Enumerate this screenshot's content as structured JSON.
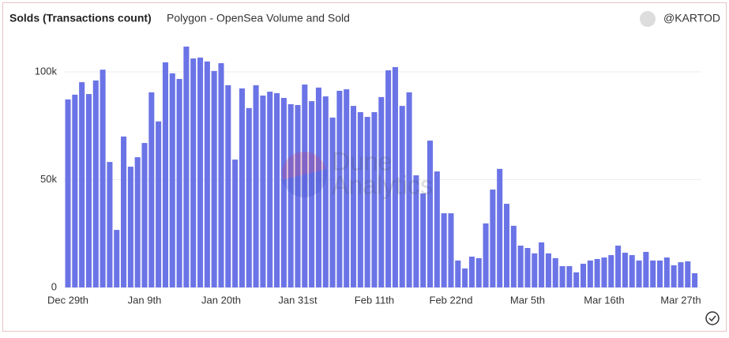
{
  "chart_data": {
    "type": "bar",
    "title": "Solds (Transactions count)",
    "subtitle": "Polygon - OpenSea Volume and Sold",
    "author": "@KARTOD",
    "watermark": [
      "Dune",
      "Analytics"
    ],
    "color": "#6b74e6",
    "grid": true,
    "categories": [
      "Dec 29th",
      null,
      null,
      null,
      null,
      null,
      null,
      null,
      null,
      null,
      null,
      "Jan 9th",
      null,
      null,
      null,
      null,
      null,
      null,
      null,
      null,
      null,
      null,
      "Jan 20th",
      null,
      null,
      null,
      null,
      null,
      null,
      null,
      null,
      null,
      null,
      "Jan 31st",
      null,
      null,
      null,
      null,
      null,
      null,
      null,
      null,
      null,
      null,
      "Feb 11th",
      null,
      null,
      null,
      null,
      null,
      null,
      null,
      null,
      null,
      null,
      "Feb 22nd",
      null,
      null,
      null,
      null,
      null,
      null,
      null,
      null,
      null,
      null,
      "Mar 5th",
      null,
      null,
      null,
      null,
      null,
      null,
      null,
      null,
      null,
      null,
      "Mar 16th",
      null,
      null,
      null,
      null,
      null,
      null,
      null,
      null,
      null,
      null,
      "Mar 27th",
      null,
      null
    ],
    "values": [
      87200,
      89400,
      95200,
      89700,
      96000,
      101000,
      58200,
      26700,
      70000,
      56000,
      60400,
      67000,
      90500,
      77000,
      104400,
      99300,
      96700,
      111700,
      106200,
      106600,
      104800,
      100400,
      104000,
      93800,
      59300,
      92300,
      83200,
      93800,
      89000,
      90800,
      90100,
      87900,
      85000,
      84600,
      94100,
      86400,
      92700,
      88600,
      78800,
      91200,
      91900,
      84200,
      81300,
      79100,
      81300,
      88300,
      100700,
      102200,
      84200,
      90500,
      52000,
      43600,
      68100,
      53800,
      34400,
      34400,
      12500,
      8800,
      14300,
      13600,
      29700,
      45400,
      55000,
      38800,
      28600,
      19400,
      18300,
      15800,
      20900,
      15800,
      13600,
      9900,
      9900,
      7000,
      11000,
      12500,
      13200,
      13900,
      15000,
      19400,
      16100,
      15000,
      12500,
      16500,
      12500,
      12500,
      13900,
      10300,
      11700,
      12100,
      6600
    ],
    "ylim": [
      0,
      115000
    ],
    "yticks": [
      0,
      {
        "value": 50000,
        "label": "50k"
      },
      {
        "value": 100000,
        "label": "100k"
      }
    ]
  }
}
